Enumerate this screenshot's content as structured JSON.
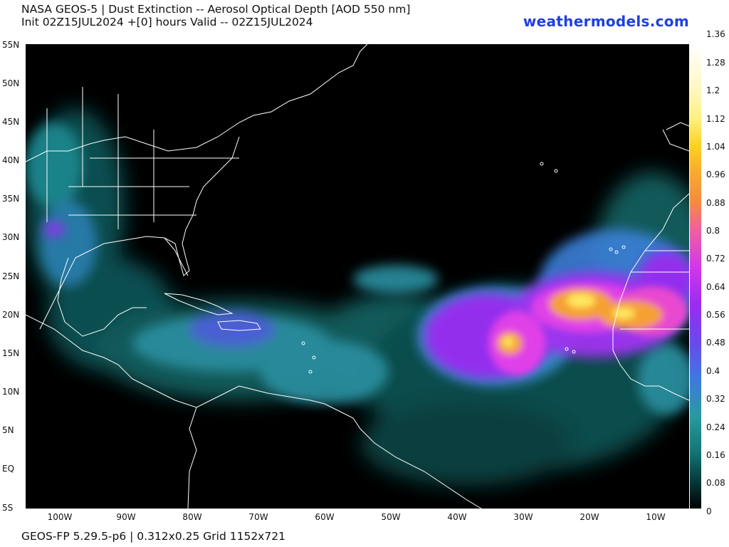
{
  "header": {
    "title_line1": "NASA GEOS-5 | Dust Extinction -- Aerosol Optical Depth [AOD 550 nm]",
    "title_line2": "Init 02Z15JUL2024 +[0] hours Valid -- 02Z15JUL2024",
    "brand": "weathermodels.com"
  },
  "footer": {
    "text": "GEOS-FP 5.29.5-p6 | 0.312x0.25 Grid 1152x721"
  },
  "map": {
    "lat_labels": [
      "55N",
      "50N",
      "45N",
      "40N",
      "35N",
      "30N",
      "25N",
      "20N",
      "15N",
      "10N",
      "5N",
      "EQ",
      "5S"
    ],
    "lon_labels": [
      "100W",
      "90W",
      "80W",
      "70W",
      "60W",
      "50W",
      "40W",
      "30W",
      "20W",
      "10W"
    ],
    "colors": {
      "background": "#000000",
      "coastline": "#ffffff",
      "low": "#0a4a4a",
      "teal": "#1f8a8a",
      "blue": "#4a6ee0",
      "purple": "#9a2cf0",
      "magenta": "#e040e8",
      "orange": "#f5a030",
      "yellow": "#ffe860"
    }
  },
  "colorbar": {
    "labels": [
      "1.36",
      "1.28",
      "1.2",
      "1.12",
      "1.04",
      "0.96",
      "0.88",
      "0.8",
      "0.72",
      "0.64",
      "0.56",
      "0.48",
      "0.4",
      "0.32",
      "0.24",
      "0.16",
      "0.08",
      "0"
    ]
  }
}
